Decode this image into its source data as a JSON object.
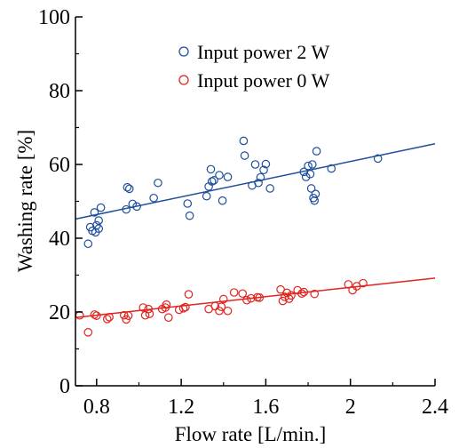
{
  "chart_data": {
    "type": "scatter",
    "title": "",
    "xlabel": "Flow rate [L/min.]",
    "ylabel": "Washing rate [%]",
    "xlim": [
      0.7,
      2.4
    ],
    "ylim": [
      0,
      100
    ],
    "x_ticks": [
      0.8,
      1.2,
      1.6,
      2.0,
      2.4
    ],
    "x_tick_labels": [
      "0.8",
      "1.2",
      "1.6",
      "2",
      "2.4"
    ],
    "y_ticks": [
      0,
      20,
      40,
      60,
      80,
      100
    ],
    "y_tick_labels": [
      "0",
      "20",
      "40",
      "60",
      "80",
      "100"
    ],
    "grid": false,
    "legend_position": "top-right",
    "series": [
      {
        "name": "Input power 2 W",
        "color": "#1f4e9b",
        "marker": "open-circle",
        "trend_line": [
          [
            0.7,
            45.2
          ],
          [
            2.4,
            65.6
          ]
        ],
        "points": [
          [
            0.76,
            38.5
          ],
          [
            0.77,
            43.0
          ],
          [
            0.78,
            42.0
          ],
          [
            0.79,
            47.0
          ],
          [
            0.795,
            41.6
          ],
          [
            0.8,
            43.5
          ],
          [
            0.81,
            42.6
          ],
          [
            0.81,
            44.8
          ],
          [
            0.82,
            48.3
          ],
          [
            0.94,
            47.8
          ],
          [
            0.945,
            53.8
          ],
          [
            0.955,
            53.4
          ],
          [
            0.97,
            49.3
          ],
          [
            0.99,
            48.6
          ],
          [
            1.07,
            50.9
          ],
          [
            1.09,
            55.0
          ],
          [
            1.23,
            49.4
          ],
          [
            1.24,
            46.1
          ],
          [
            1.32,
            51.4
          ],
          [
            1.33,
            54.0
          ],
          [
            1.34,
            58.7
          ],
          [
            1.345,
            55.4
          ],
          [
            1.355,
            55.7
          ],
          [
            1.38,
            57.1
          ],
          [
            1.395,
            50.2
          ],
          [
            1.42,
            56.6
          ],
          [
            1.495,
            66.4
          ],
          [
            1.5,
            62.4
          ],
          [
            1.535,
            54.3
          ],
          [
            1.55,
            60.0
          ],
          [
            1.565,
            55.0
          ],
          [
            1.575,
            56.5
          ],
          [
            1.59,
            58.5
          ],
          [
            1.6,
            60.1
          ],
          [
            1.62,
            53.5
          ],
          [
            1.78,
            58.0
          ],
          [
            1.79,
            56.6
          ],
          [
            1.8,
            59.6
          ],
          [
            1.81,
            57.4
          ],
          [
            1.815,
            53.5
          ],
          [
            1.82,
            60.0
          ],
          [
            1.825,
            50.9
          ],
          [
            1.83,
            50.2
          ],
          [
            1.835,
            52.0
          ],
          [
            1.84,
            63.6
          ],
          [
            1.91,
            58.9
          ],
          [
            2.13,
            61.6
          ]
        ]
      },
      {
        "name": "Input power 0 W",
        "color": "#e0241f",
        "marker": "open-circle",
        "trend_line": [
          [
            0.7,
            18.5
          ],
          [
            2.4,
            29.2
          ]
        ],
        "points": [
          [
            0.72,
            19.1
          ],
          [
            0.76,
            14.5
          ],
          [
            0.79,
            19.3
          ],
          [
            0.8,
            19.0
          ],
          [
            0.85,
            18.1
          ],
          [
            0.86,
            18.6
          ],
          [
            0.93,
            19.1
          ],
          [
            0.94,
            18.0
          ],
          [
            0.95,
            19.0
          ],
          [
            1.02,
            21.2
          ],
          [
            1.03,
            19.1
          ],
          [
            1.045,
            20.8
          ],
          [
            1.05,
            19.5
          ],
          [
            1.11,
            20.8
          ],
          [
            1.125,
            21.2
          ],
          [
            1.13,
            22.0
          ],
          [
            1.14,
            18.5
          ],
          [
            1.19,
            20.6
          ],
          [
            1.21,
            21.0
          ],
          [
            1.22,
            21.3
          ],
          [
            1.235,
            24.8
          ],
          [
            1.33,
            20.8
          ],
          [
            1.36,
            21.6
          ],
          [
            1.38,
            20.3
          ],
          [
            1.39,
            21.4
          ],
          [
            1.4,
            23.5
          ],
          [
            1.42,
            20.3
          ],
          [
            1.45,
            25.3
          ],
          [
            1.49,
            25.0
          ],
          [
            1.51,
            23.2
          ],
          [
            1.53,
            23.7
          ],
          [
            1.56,
            24.0
          ],
          [
            1.57,
            23.9
          ],
          [
            1.67,
            26.1
          ],
          [
            1.68,
            23.0
          ],
          [
            1.69,
            24.1
          ],
          [
            1.7,
            25.2
          ],
          [
            1.71,
            23.6
          ],
          [
            1.72,
            24.5
          ],
          [
            1.75,
            25.9
          ],
          [
            1.77,
            25.0
          ],
          [
            1.78,
            25.4
          ],
          [
            1.83,
            24.9
          ],
          [
            1.99,
            27.5
          ],
          [
            2.01,
            25.9
          ],
          [
            2.03,
            27.0
          ],
          [
            2.06,
            27.8
          ]
        ]
      }
    ]
  }
}
